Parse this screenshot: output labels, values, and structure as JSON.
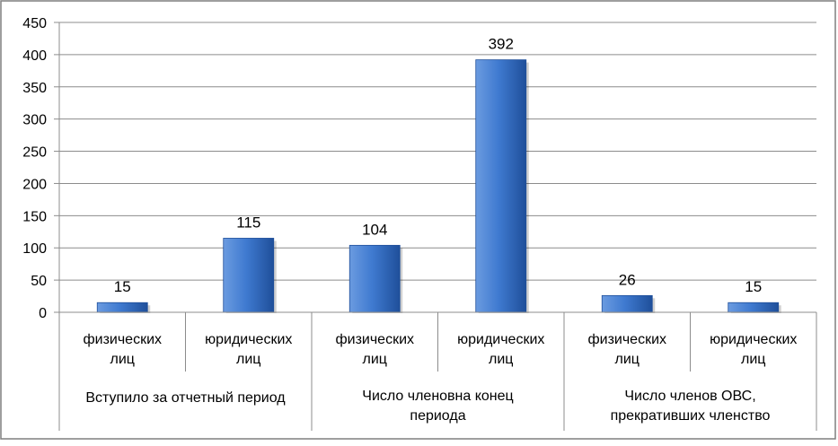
{
  "chart_data": {
    "type": "bar",
    "ylim": [
      0,
      450
    ],
    "yticks": [
      0,
      50,
      100,
      150,
      200,
      250,
      300,
      350,
      400,
      450
    ],
    "grid": true,
    "legend": "none",
    "categories": [
      "физических лиц",
      "юридических лиц",
      "физических лиц",
      "юридических лиц",
      "физических лиц",
      "юридических лиц"
    ],
    "category_lines": [
      [
        "физических",
        "лиц"
      ],
      [
        "юридических",
        "лиц"
      ],
      [
        "физических",
        "лиц"
      ],
      [
        "юридических",
        "лиц"
      ],
      [
        "физических",
        "лиц"
      ],
      [
        "юридических",
        "лиц"
      ]
    ],
    "groups": [
      {
        "lines": [
          "Вступило за отчетный период"
        ]
      },
      {
        "lines": [
          "Число членовна конец",
          "периода"
        ]
      },
      {
        "lines": [
          "Число членов ОВС,",
          "прекративших членство"
        ]
      }
    ],
    "values": [
      15,
      115,
      104,
      392,
      26,
      15
    ],
    "colors": {
      "bar_light": "#6b9be0",
      "bar_mid": "#3f7ad0",
      "bar_dark": "#1f4f9a",
      "grid": "#8c8c8c",
      "axis": "#8c8c8c",
      "border": "#7f7f7f"
    }
  }
}
